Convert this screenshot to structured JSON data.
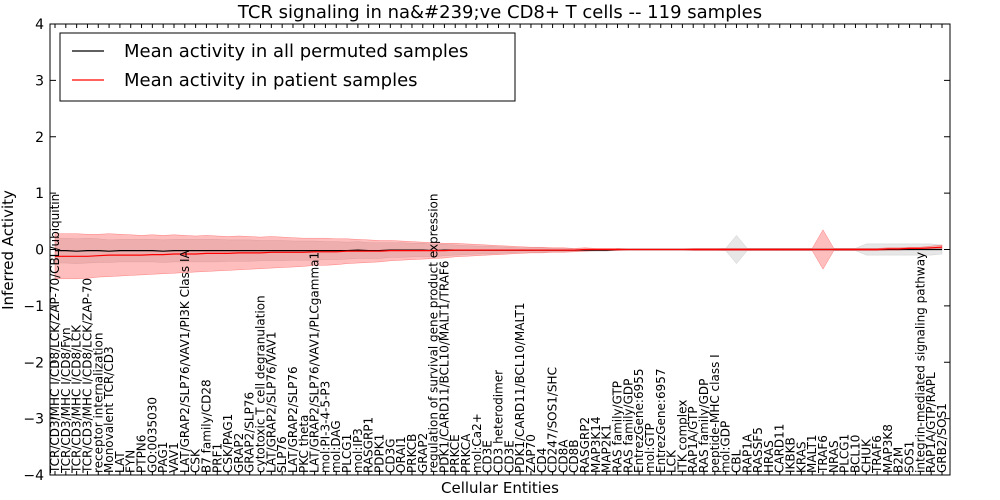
{
  "chart_data": {
    "type": "line",
    "title": "TCR signaling in na&#239;ve CD8+ T cells -- 119 samples",
    "xlabel": "Cellular Entities",
    "ylabel": "Inferred Activity",
    "ylim": [
      -4,
      4
    ],
    "yticks": [
      -4,
      -3,
      -2,
      -1,
      0,
      1,
      2,
      3,
      4
    ],
    "legend_position": "top-left",
    "categories": [
      "TCR/CD3/MHC I/CD8/LCK/ZAP-70/CBL/ubiquitin",
      "TCR/CD3/MHC I/CD8/Fyn",
      "TCR/CD3/MHC I/CD8/LCK",
      "TCR/CD3/MHC I/CD8/LCK/ZAP-70",
      "receptor internalization",
      "Monovalent TCR/CD3",
      "LAT",
      "FYN",
      "PTPN6",
      "GO:0035030",
      "PAG1",
      "VAV1",
      "LAT/GRAP2/SLP76/VAV1/PI3K Class IA",
      "CSK",
      "B7 family/CD28",
      "PRF1",
      "CSK/PAG1",
      "GRAP2",
      "GRAP2/SLP76",
      "cytotoxic T cell degranulation",
      "LAT/GRAP2/SLP76/VAV1",
      "SLP76",
      "LAT/GRAP2/SLP76",
      "PKC theta",
      "LAT/GRAP2/SLP76/VAV1/PLCgamma1",
      "mol:PI-3-4-5-P3",
      "mol:DAG",
      "PLCG1",
      "mol:IP3",
      "RASGRP1",
      "PDPK1",
      "CD3G",
      "ORAI1",
      "PRKCB",
      "GRAP2",
      "regulation of survival gene product expression",
      "PDK1/CARD11/BCL10/MALT1/TRAF6",
      "PRKCE",
      "PRKCA",
      "mol:Ca2+",
      "CD3E",
      "CD3 heterodimer",
      "CD3E",
      "PDK1/CARD11/BCL10/MALT1",
      "ZAP70",
      "CD4",
      "CD247/SOS1/SHC",
      "CD8A",
      "CD8B",
      "RASGRP2",
      "MAP3K14",
      "MAP2K1",
      "RAS family/GTP",
      "RAS family/GDP",
      "EntrezGene:6955",
      "mol:GTP",
      "EntrezGene:6957",
      "LCK",
      "ITK complex",
      "RAP1A/GTP",
      "RAS family/GDP",
      "peptide-MHC class I",
      "mol:GDP",
      "CBL",
      "RAP1A",
      "RASSF5",
      "HRAS",
      "CARD11",
      "IKBKB",
      "KRAS",
      "MALT1",
      "TRAF6",
      "NRAS",
      "PLCG1",
      "BCL10",
      "CHUK",
      "TRAF6",
      "MAP3K8",
      "B2M",
      "SOS1",
      "integrin-mediated signaling pathway",
      "RAP1A/GTP/RAPL",
      "GRB2/SOS1"
    ],
    "series": [
      {
        "name": "Mean activity in all permuted samples",
        "color": "#000000",
        "values": [
          -0.02,
          -0.02,
          -0.03,
          -0.02,
          -0.02,
          -0.03,
          -0.02,
          -0.02,
          -0.02,
          -0.02,
          -0.03,
          -0.02,
          -0.02,
          -0.02,
          -0.02,
          -0.02,
          -0.02,
          -0.02,
          -0.02,
          -0.02,
          -0.02,
          -0.02,
          -0.02,
          -0.02,
          -0.02,
          -0.02,
          -0.02,
          -0.02,
          -0.01,
          -0.02,
          -0.02,
          -0.01,
          -0.01,
          -0.01,
          -0.01,
          -0.02,
          -0.01,
          -0.01,
          -0.01,
          -0.01,
          -0.01,
          -0.01,
          -0.01,
          -0.01,
          -0.01,
          -0.01,
          -0.01,
          -0.01,
          -0.01,
          -0.01,
          -0.01,
          -0.01,
          0.0,
          0.0,
          0.0,
          0.0,
          0.0,
          0.0,
          0.0,
          0.0,
          0.0,
          0.0,
          0.0,
          0.0,
          0.0,
          0.0,
          0.0,
          0.0,
          0.0,
          0.0,
          0.0,
          0.0,
          0.0,
          0.0,
          0.0,
          0.0,
          0.0,
          0.0,
          0.0,
          0.0,
          0.0,
          0.0,
          0.0
        ],
        "band": [
          0.22,
          0.22,
          0.22,
          0.22,
          0.21,
          0.2,
          0.2,
          0.2,
          0.2,
          0.2,
          0.2,
          0.2,
          0.2,
          0.2,
          0.2,
          0.2,
          0.19,
          0.19,
          0.19,
          0.18,
          0.18,
          0.18,
          0.17,
          0.17,
          0.17,
          0.16,
          0.16,
          0.15,
          0.15,
          0.14,
          0.14,
          0.13,
          0.13,
          0.12,
          0.12,
          0.11,
          0.1,
          0.09,
          0.08,
          0.07,
          0.07,
          0.06,
          0.05,
          0.04,
          0.04,
          0.04,
          0.03,
          0.03,
          0.02,
          0.02,
          0.02,
          0.02,
          0.01,
          0.01,
          0.01,
          0.01,
          0.01,
          0.01,
          0.01,
          0.01,
          0.01,
          0.01,
          0.02,
          0.25,
          0.02,
          0.02,
          0.02,
          0.02,
          0.02,
          0.02,
          0.02,
          0.02,
          0.02,
          0.02,
          0.02,
          0.1,
          0.1,
          0.1,
          0.1,
          0.1,
          0.1,
          0.1,
          0.08
        ]
      },
      {
        "name": "Mean activity in patient samples",
        "color": "#ff0000",
        "values": [
          -0.12,
          -0.12,
          -0.12,
          -0.12,
          -0.11,
          -0.1,
          -0.1,
          -0.1,
          -0.1,
          -0.09,
          -0.09,
          -0.08,
          -0.08,
          -0.08,
          -0.07,
          -0.07,
          -0.07,
          -0.06,
          -0.06,
          -0.06,
          -0.05,
          -0.05,
          -0.05,
          -0.05,
          -0.04,
          -0.04,
          -0.04,
          -0.03,
          -0.03,
          -0.03,
          -0.03,
          -0.02,
          -0.02,
          -0.02,
          -0.02,
          -0.02,
          -0.02,
          -0.01,
          -0.01,
          -0.01,
          -0.01,
          -0.01,
          -0.01,
          -0.01,
          -0.01,
          -0.01,
          -0.01,
          -0.01,
          -0.01,
          0.0,
          0.0,
          0.0,
          0.0,
          0.0,
          0.0,
          0.0,
          0.0,
          0.0,
          0.0,
          0.0,
          0.0,
          0.0,
          0.0,
          0.0,
          0.0,
          0.0,
          0.0,
          0.0,
          0.0,
          0.0,
          0.0,
          0.0,
          0.0,
          0.0,
          0.0,
          0.0,
          0.0,
          0.01,
          0.01,
          0.02,
          0.02,
          0.03,
          0.04
        ],
        "band": [
          0.4,
          0.4,
          0.4,
          0.39,
          0.38,
          0.38,
          0.37,
          0.36,
          0.35,
          0.35,
          0.34,
          0.34,
          0.33,
          0.32,
          0.32,
          0.31,
          0.3,
          0.3,
          0.29,
          0.28,
          0.28,
          0.27,
          0.26,
          0.25,
          0.24,
          0.24,
          0.23,
          0.22,
          0.21,
          0.2,
          0.19,
          0.18,
          0.17,
          0.16,
          0.15,
          0.14,
          0.13,
          0.12,
          0.11,
          0.1,
          0.09,
          0.08,
          0.07,
          0.06,
          0.05,
          0.05,
          0.04,
          0.04,
          0.03,
          0.03,
          0.02,
          0.02,
          0.02,
          0.01,
          0.01,
          0.01,
          0.01,
          0.01,
          0.01,
          0.02,
          0.02,
          0.02,
          0.02,
          0.02,
          0.02,
          0.02,
          0.02,
          0.02,
          0.02,
          0.02,
          0.02,
          0.35,
          0.02,
          0.02,
          0.02,
          0.02,
          0.02,
          0.02,
          0.02,
          0.02,
          0.02,
          0.03,
          0.04
        ]
      }
    ]
  }
}
